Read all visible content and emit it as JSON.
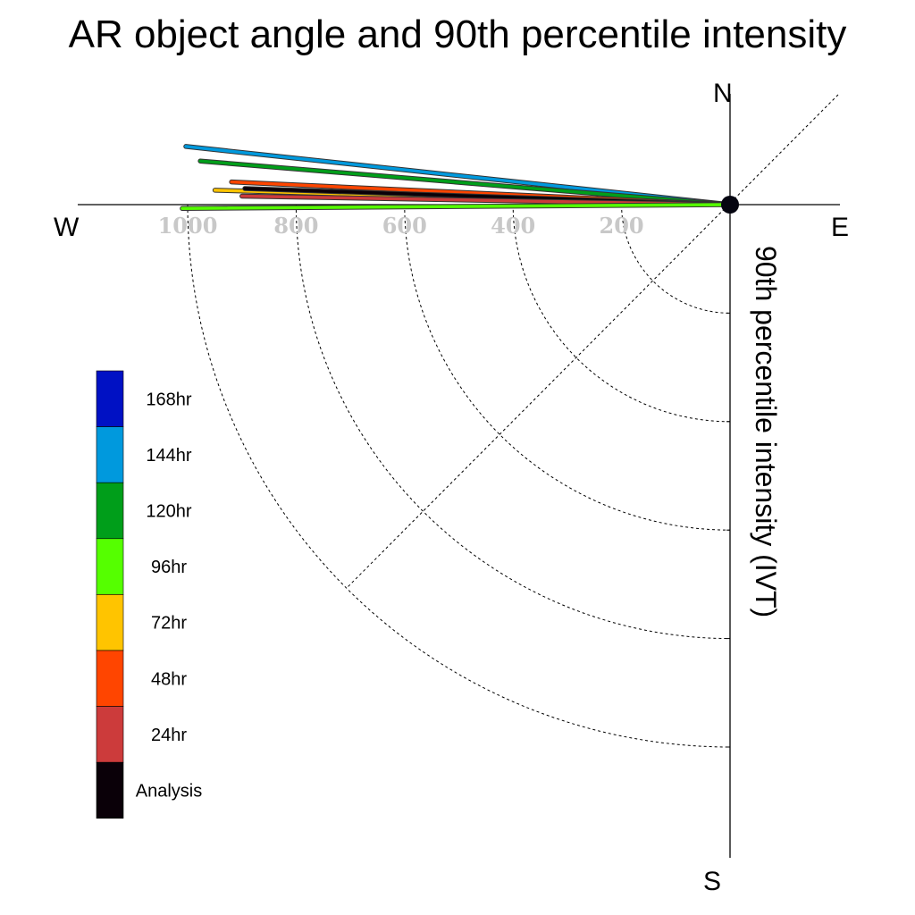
{
  "title": "AR object angle and 90th percentile intensity",
  "compass": {
    "n": "N",
    "s": "S",
    "e": "E",
    "w": "W"
  },
  "colors": {
    "Analysis": "#0a0008",
    "24hr": "#cc3b3b",
    "48hr": "#ff4500",
    "72hr": "#ffc400",
    "96hr": "#55ff00",
    "120hr": "#009e1a",
    "144hr": "#0099dd",
    "168hr": "#0011c4"
  },
  "chart_data": {
    "type": "polar",
    "title": "AR object angle and 90th percentile intensity",
    "radial_label": "90th percentile intensity (IVT)",
    "radial_ticks": [
      200,
      400,
      600,
      800,
      1000
    ],
    "legend": [
      "168hr",
      "144hr",
      "120hr",
      "96hr",
      "72hr",
      "48hr",
      "24hr",
      "Analysis"
    ],
    "series": [
      {
        "name": "144hr",
        "intensity": 1009,
        "angle_deg_north_of_west": 6.1
      },
      {
        "name": "120hr",
        "intensity": 980,
        "angle_deg_north_of_west": 4.7
      },
      {
        "name": "48hr",
        "intensity": 920,
        "angle_deg_north_of_west": 2.6
      },
      {
        "name": "72hr",
        "intensity": 950,
        "angle_deg_north_of_west": 1.6
      },
      {
        "name": "Analysis",
        "intensity": 895,
        "angle_deg_north_of_west": 1.9
      },
      {
        "name": "24hr",
        "intensity": 900,
        "angle_deg_north_of_west": 1.0
      },
      {
        "name": "96hr",
        "intensity": 1010,
        "angle_deg_north_of_west": -0.4
      }
    ]
  }
}
